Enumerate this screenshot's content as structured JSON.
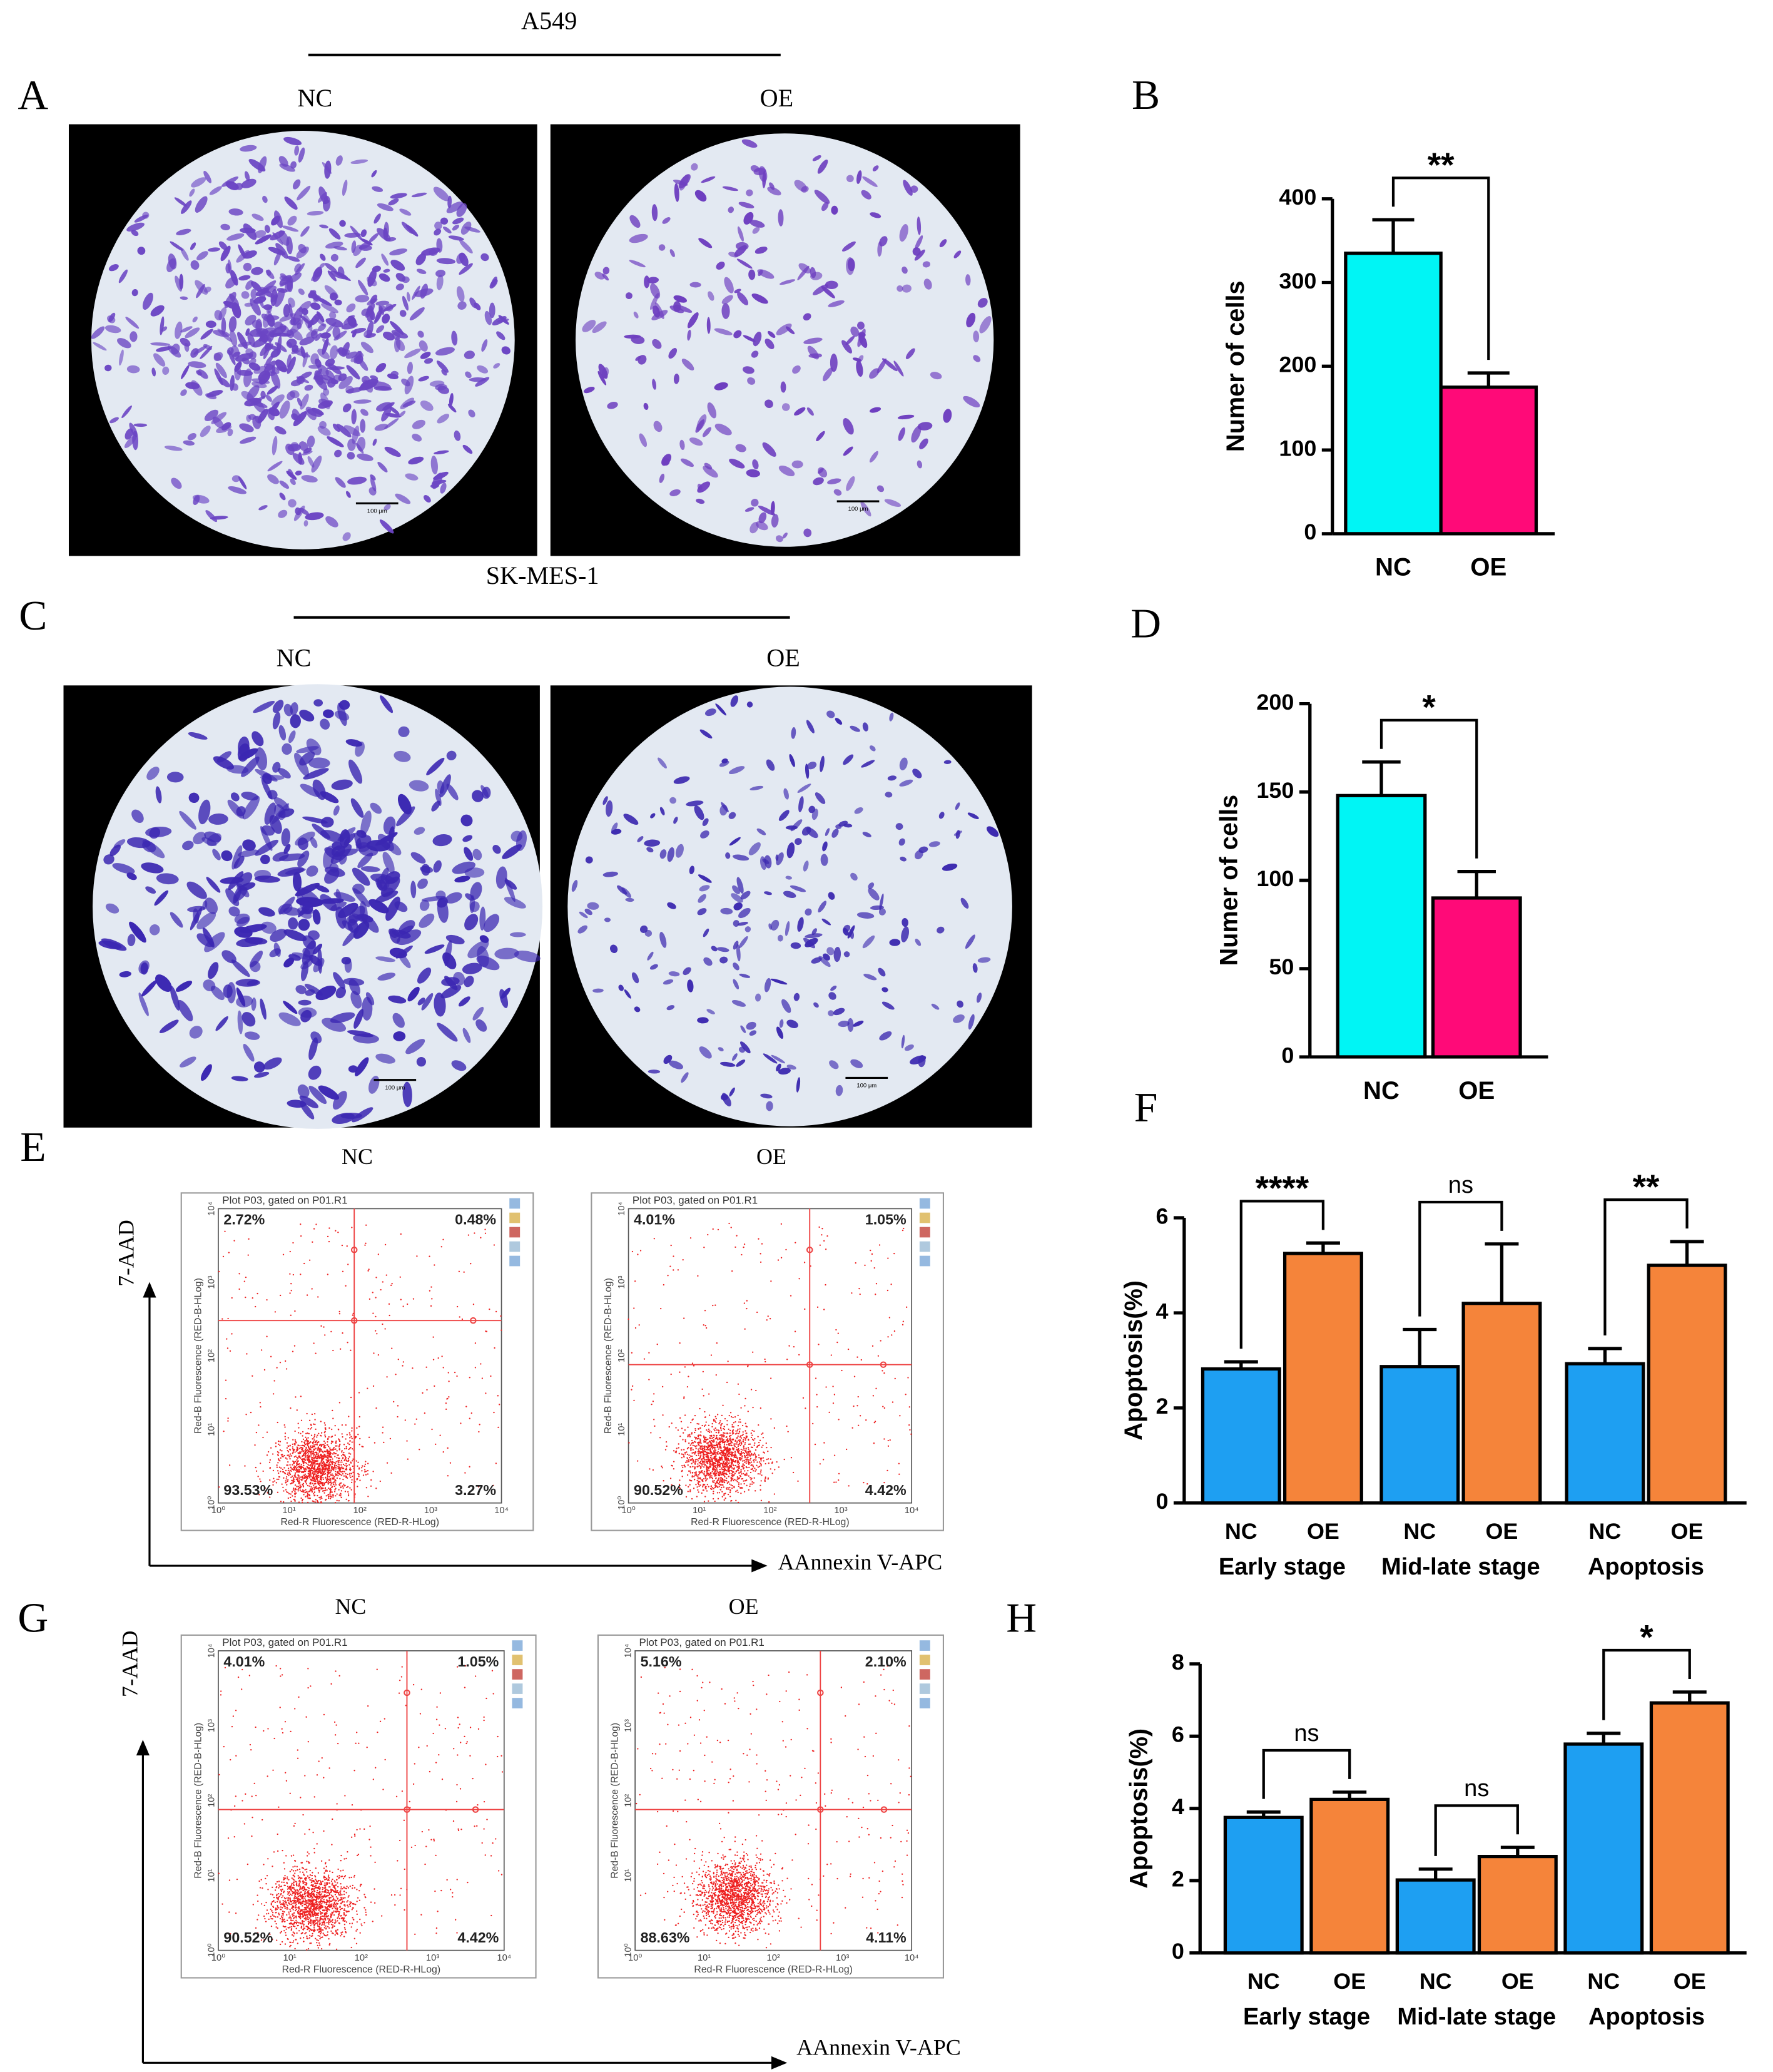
{
  "panel_labels": [
    "A",
    "B",
    "C",
    "D",
    "E",
    "F",
    "G",
    "H"
  ],
  "cell_lines": [
    "A549",
    "SK-MES-1"
  ],
  "image_groups": [
    "NC",
    "OE"
  ],
  "scale_bar": "100 μm",
  "flow": {
    "header": "Plot P03, gated on P01.R1",
    "y_label": "Red-B Fluorescence (RED-B-HLog)",
    "x_label": "Red-R Fluorescence (RED-R-HLog)",
    "ticks": [
      "10⁰",
      "10¹",
      "10²",
      "10³",
      "10⁴"
    ],
    "y_axis_title": "7-AAD",
    "x_axis_title": "AAnnexin V-APC",
    "plots": [
      {
        "quadrants": [
          "2.72%",
          "0.48%",
          "93.53%",
          "3.27%"
        ]
      },
      {
        "quadrants": [
          "4.01%",
          "1.05%",
          "90.52%",
          "4.42%"
        ]
      },
      {
        "quadrants": [
          "4.01%",
          "1.05%",
          "90.52%",
          "4.42%"
        ]
      },
      {
        "quadrants": [
          "5.16%",
          "2.10%",
          "88.63%",
          "4.11%"
        ]
      }
    ]
  },
  "chart_data": [
    {
      "type": "bar",
      "y_label": "Numer of cells",
      "categories": [
        "NC",
        "OE"
      ],
      "values": [
        335,
        175
      ],
      "errors": [
        40,
        17
      ],
      "colors": [
        "#00f5f5",
        "#ff0a78"
      ],
      "ylim": [
        0,
        400
      ],
      "yticks": [
        0,
        100,
        200,
        300,
        400
      ],
      "annotations": [
        {
          "text": "**"
        }
      ]
    },
    {
      "type": "bar",
      "y_label": "Numer of cells",
      "categories": [
        "NC",
        "OE"
      ],
      "values": [
        148,
        90
      ],
      "errors": [
        19,
        15
      ],
      "colors": [
        "#00f5f5",
        "#ff0a78"
      ],
      "ylim": [
        0,
        200
      ],
      "yticks": [
        0,
        50,
        100,
        150,
        200
      ],
      "annotations": [
        {
          "text": "*"
        }
      ]
    },
    {
      "type": "grouped_bar",
      "y_label": "Apoptosis(%)",
      "categories": [
        "Early stage",
        "Mid-late stage",
        "Apoptosis"
      ],
      "series": [
        {
          "name": "NC",
          "color": "#1e9ff2",
          "values": [
            2.82,
            2.87,
            2.93
          ],
          "errors": [
            0.15,
            0.78,
            0.32
          ]
        },
        {
          "name": "OE",
          "color": "#f5843a",
          "values": [
            5.25,
            4.2,
            5.0
          ],
          "errors": [
            0.22,
            1.25,
            0.5
          ]
        }
      ],
      "ylim": [
        0,
        6
      ],
      "yticks": [
        0,
        2,
        4,
        6
      ],
      "annotations": [
        {
          "text": "****"
        },
        {
          "text": "ns"
        },
        {
          "text": "**"
        }
      ]
    },
    {
      "type": "grouped_bar",
      "y_label": "Apoptosis(%)",
      "categories": [
        "Early stage",
        "Mid-late stage",
        "Apoptosis"
      ],
      "series": [
        {
          "name": "NC",
          "color": "#1e9ff2",
          "values": [
            3.75,
            2.02,
            5.78
          ],
          "errors": [
            0.15,
            0.3,
            0.3
          ]
        },
        {
          "name": "OE",
          "color": "#f5843a",
          "values": [
            4.25,
            2.67,
            6.92
          ],
          "errors": [
            0.2,
            0.25,
            0.3
          ]
        }
      ],
      "ylim": [
        0,
        8
      ],
      "yticks": [
        0,
        2,
        4,
        6,
        8
      ],
      "annotations": [
        {
          "text": "ns"
        },
        {
          "text": "ns"
        },
        {
          "text": "*"
        }
      ]
    }
  ]
}
